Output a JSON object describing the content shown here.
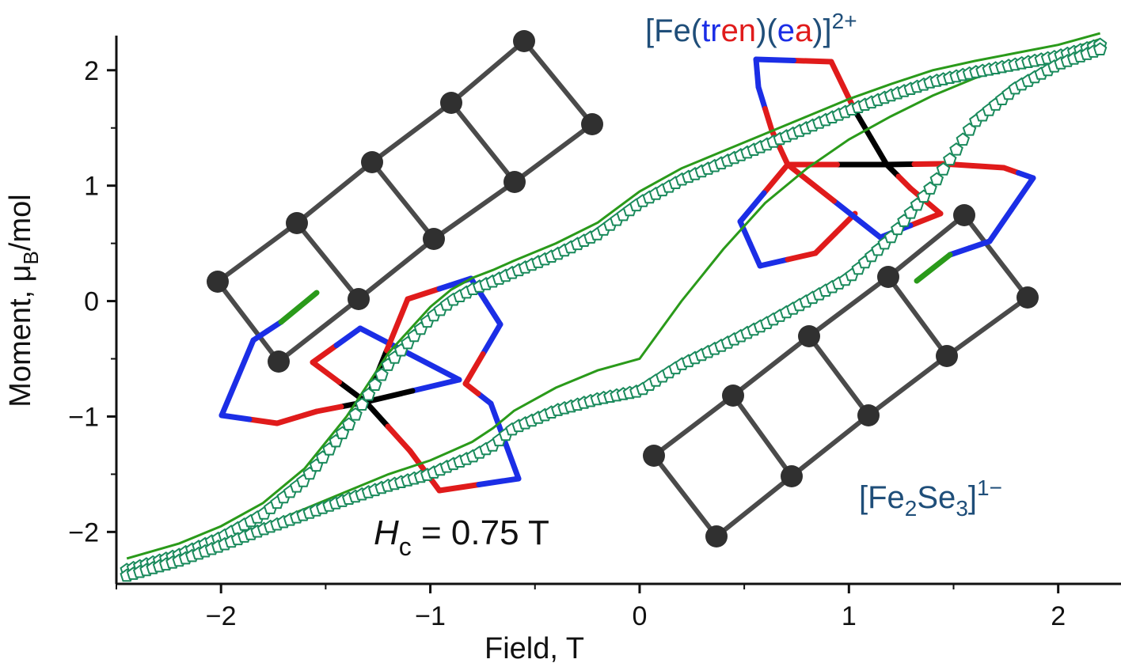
{
  "chart_data": {
    "type": "scatter",
    "xlabel": "Field, T",
    "ylabel_prefix": "Moment, μ",
    "ylabel_sub": "B",
    "ylabel_suffix": "/mol",
    "xlim": [
      -2.5,
      2.3
    ],
    "ylim": [
      -2.45,
      2.3
    ],
    "xticks": [
      -2,
      -1,
      0,
      1,
      2
    ],
    "xtick_labels": [
      "−2",
      "−1",
      "0",
      "1",
      "2"
    ],
    "yticks": [
      -2,
      -1,
      0,
      1,
      2
    ],
    "ytick_labels": [
      "−2",
      "−1",
      "0",
      "1",
      "2"
    ],
    "series": [
      {
        "marker": "open-pentagon",
        "color": "#1a8a5c",
        "fit_color": "#2a9a1a",
        "x": [
          -2.45,
          -2.2,
          -2.0,
          -1.8,
          -1.6,
          -1.4,
          -1.2,
          -1.0,
          -0.9,
          -0.8,
          -0.7,
          -0.6,
          -0.4,
          -0.2,
          0.0,
          0.2,
          0.4,
          0.6,
          0.8,
          1.0,
          1.2,
          1.4,
          1.6,
          1.8,
          2.0,
          2.2
        ],
        "y_descending": [
          -2.33,
          -2.2,
          -2.05,
          -1.85,
          -1.55,
          -1.1,
          -0.55,
          -0.15,
          0.0,
          0.1,
          0.17,
          0.25,
          0.4,
          0.58,
          0.85,
          1.05,
          1.2,
          1.35,
          1.5,
          1.65,
          1.78,
          1.9,
          1.98,
          2.05,
          2.12,
          2.22
        ],
        "y_ascending": [
          -2.38,
          -2.25,
          -2.12,
          -1.98,
          -1.85,
          -1.72,
          -1.6,
          -1.5,
          -1.42,
          -1.35,
          -1.25,
          -1.1,
          -0.95,
          -0.85,
          -0.78,
          -0.55,
          -0.38,
          -0.2,
          0.0,
          0.2,
          0.55,
          1.0,
          1.55,
          1.85,
          2.05,
          2.18
        ],
        "fit_y": [
          -2.36,
          -2.23,
          -2.1,
          -1.95,
          -1.8,
          -1.65,
          -1.5,
          -1.38,
          -1.3,
          -1.22,
          -1.1,
          -0.95,
          -0.75,
          -0.6,
          -0.5,
          0.0,
          0.45,
          0.85,
          1.15,
          1.4,
          1.6,
          1.78,
          1.93,
          2.05,
          2.15,
          2.27
        ]
      }
    ],
    "annotations": {
      "hc_italic": "H",
      "hc_sub": "c",
      "hc_rest": " = 0.75 T",
      "cation_open": "[Fe(",
      "cation_tr": "tr",
      "cation_en": "en",
      "cation_mid": ")(",
      "cation_e": "e",
      "cation_a": "a",
      "cation_close": ")]",
      "cation_charge": "2+",
      "anion_open": "[Fe",
      "anion_sub1": "2",
      "anion_se": "Se",
      "anion_sub2": "3",
      "anion_close": "]",
      "anion_charge": "1−"
    },
    "colors": {
      "axis": "#111111",
      "label_blue": "#1f4e79",
      "atom_blue": "#1b2ee6",
      "atom_red": "#e01b1b",
      "chain_bond": "#4a4a4a",
      "chain_atom": "#303030",
      "green_bond": "#2a9a1a"
    }
  }
}
